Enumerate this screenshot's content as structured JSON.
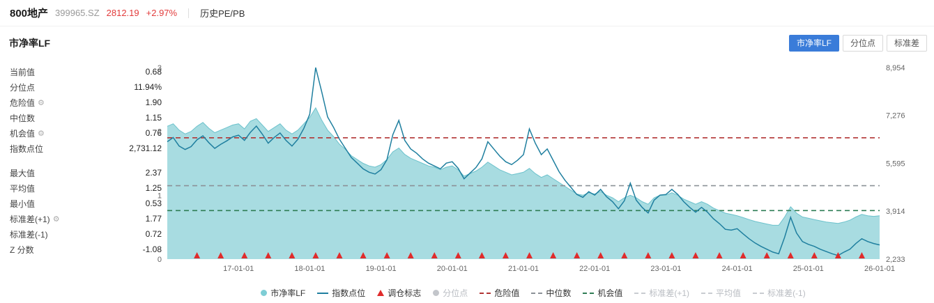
{
  "header": {
    "name": "800地产",
    "code": "399965.SZ",
    "price": "2812.19",
    "change": "+2.97%",
    "price_color": "#e23b3b",
    "menu_label": "历史PE/PB"
  },
  "panel": {
    "title": "市净率LF",
    "tabs": [
      "市净率LF",
      "分位点",
      "标准差"
    ],
    "active_tab_index": 0,
    "active_tab_color": "#3a7cd9"
  },
  "stats": {
    "rows": [
      {
        "label": "当前值",
        "value": "0.68",
        "gear": false
      },
      {
        "label": "分位点",
        "value": "11.94%",
        "gear": false
      },
      {
        "label": "危险值",
        "value": "1.90",
        "gear": true
      },
      {
        "label": "中位数",
        "value": "1.15",
        "gear": false
      },
      {
        "label": "机会值",
        "value": "0.76",
        "gear": true
      },
      {
        "label": "指数点位",
        "value": "2,731.12",
        "gear": false
      },
      {
        "label": "最大值",
        "value": "2.37",
        "gear": false
      },
      {
        "label": "平均值",
        "value": "1.25",
        "gear": false
      },
      {
        "label": "最小值",
        "value": "0.53",
        "gear": false
      },
      {
        "label": "标准差(+1)",
        "value": "1.77",
        "gear": true
      },
      {
        "label": "标准差(-1)",
        "value": "0.72",
        "gear": false
      },
      {
        "label": "Z 分数",
        "value": "-1.08",
        "gear": false
      }
    ]
  },
  "chart_data": {
    "type": "area+line",
    "title": "市净率LF",
    "start_month": "2016-01",
    "month_step": 1,
    "left_axis": {
      "label": "市净率LF",
      "ticks": [
        0,
        1,
        2,
        3
      ],
      "range": [
        0,
        3
      ]
    },
    "right_axis": {
      "label": "指数点位",
      "tick_values": [
        8954,
        7276,
        5595,
        3914,
        2233
      ],
      "tick_labels": [
        "8,954",
        "7,276",
        "5,595",
        "3,914",
        "2,233"
      ],
      "range": [
        2233,
        8954
      ]
    },
    "x_tick_labels": [
      "17-01-01",
      "18-01-01",
      "19-01-01",
      "20-01-01",
      "21-01-01",
      "22-01-01",
      "23-01-01",
      "24-01-01",
      "25-01-01",
      "26-01-01"
    ],
    "x_tick_month_indices": [
      12,
      24,
      36,
      48,
      60,
      72,
      84,
      96,
      108,
      120
    ],
    "pb_series": {
      "name": "市净率LF",
      "values": [
        2.08,
        2.12,
        2.02,
        1.96,
        2.0,
        2.08,
        2.14,
        2.05,
        1.98,
        2.02,
        2.06,
        2.1,
        2.12,
        2.04,
        2.16,
        2.2,
        2.1,
        2.0,
        2.06,
        2.12,
        2.02,
        1.96,
        2.02,
        2.12,
        2.22,
        2.37,
        2.18,
        2.02,
        1.92,
        1.8,
        1.72,
        1.62,
        1.56,
        1.5,
        1.46,
        1.44,
        1.48,
        1.56,
        1.68,
        1.74,
        1.64,
        1.58,
        1.54,
        1.5,
        1.46,
        1.44,
        1.4,
        1.44,
        1.46,
        1.4,
        1.3,
        1.34,
        1.38,
        1.44,
        1.52,
        1.46,
        1.4,
        1.36,
        1.32,
        1.34,
        1.36,
        1.42,
        1.34,
        1.28,
        1.32,
        1.26,
        1.2,
        1.14,
        1.08,
        1.02,
        1.0,
        1.04,
        1.02,
        1.06,
        1.0,
        0.96,
        0.9,
        0.96,
        1.0,
        0.96,
        0.9,
        0.86,
        0.96,
        1.0,
        1.0,
        1.04,
        1.0,
        0.94,
        0.9,
        0.86,
        0.9,
        0.86,
        0.8,
        0.76,
        0.72,
        0.7,
        0.68,
        0.65,
        0.62,
        0.59,
        0.57,
        0.55,
        0.53,
        0.53,
        0.66,
        0.82,
        0.72,
        0.66,
        0.64,
        0.62,
        0.6,
        0.58,
        0.57,
        0.56,
        0.58,
        0.61,
        0.66,
        0.7,
        0.68,
        0.67,
        0.68
      ]
    },
    "index_series": {
      "name": "指数点位",
      "values": [
        6350,
        6500,
        6200,
        6080,
        6180,
        6420,
        6560,
        6320,
        6120,
        6260,
        6380,
        6520,
        6580,
        6400,
        6680,
        6900,
        6620,
        6300,
        6500,
        6660,
        6400,
        6200,
        6440,
        6820,
        7320,
        8954,
        8120,
        7220,
        6860,
        6440,
        6120,
        5800,
        5600,
        5400,
        5280,
        5220,
        5370,
        5720,
        6600,
        7100,
        6400,
        6100,
        5950,
        5750,
        5600,
        5500,
        5400,
        5600,
        5650,
        5420,
        5050,
        5250,
        5450,
        5750,
        6350,
        6100,
        5850,
        5650,
        5550,
        5700,
        5900,
        6800,
        6300,
        5900,
        6100,
        5700,
        5300,
        5000,
        4750,
        4500,
        4400,
        4600,
        4480,
        4680,
        4420,
        4250,
        4000,
        4280,
        4900,
        4300,
        4050,
        3850,
        4300,
        4480,
        4500,
        4680,
        4500,
        4250,
        4050,
        3880,
        4050,
        3880,
        3650,
        3480,
        3280,
        3250,
        3300,
        3120,
        2950,
        2800,
        2680,
        2580,
        2480,
        2420,
        3000,
        3700,
        3150,
        2850,
        2750,
        2680,
        2580,
        2500,
        2420,
        2360,
        2480,
        2580,
        2780,
        2950,
        2850,
        2780,
        2731
      ]
    },
    "reference_lines": [
      {
        "name": "危险值",
        "value": 1.9,
        "color": "#b23434"
      },
      {
        "name": "中位数",
        "value": 1.15,
        "color": "#8b9197"
      },
      {
        "name": "机会值",
        "value": 0.76,
        "color": "#2e7d54"
      }
    ],
    "rebalance_marker_indices": [
      5,
      9,
      13,
      17,
      21,
      25,
      29,
      33,
      37,
      41,
      45,
      49,
      53,
      57,
      61,
      65,
      69,
      73,
      77,
      81,
      85,
      89,
      93,
      97,
      101,
      105,
      109,
      113,
      117
    ],
    "colors": {
      "area_fill": "#9fd8de",
      "area_edge": "#6cc2cc",
      "index_line": "#1f7f9f",
      "marker": "#e02b2b"
    }
  },
  "legend": {
    "items": [
      {
        "label": "市净率LF",
        "marker": "dot",
        "color": "#7ecdd5",
        "active": true
      },
      {
        "label": "指数点位",
        "marker": "line",
        "color": "#1f7f9f",
        "active": true
      },
      {
        "label": "调仓标志",
        "marker": "triangle",
        "color": "#e02b2b",
        "active": true
      },
      {
        "label": "分位点",
        "marker": "dot",
        "color": "#c3c6cb",
        "active": false
      },
      {
        "label": "危险值",
        "marker": "dash",
        "color": "#b23434",
        "active": true
      },
      {
        "label": "中位数",
        "marker": "dash",
        "color": "#8b9197",
        "active": true
      },
      {
        "label": "机会值",
        "marker": "dash",
        "color": "#2e7d54",
        "active": true
      },
      {
        "label": "标准差(+1)",
        "marker": "dash",
        "color": "#c9ccd1",
        "active": false
      },
      {
        "label": "平均值",
        "marker": "dash",
        "color": "#c9ccd1",
        "active": false
      },
      {
        "label": "标准差(-1)",
        "marker": "dash",
        "color": "#c9ccd1",
        "active": false
      }
    ]
  }
}
